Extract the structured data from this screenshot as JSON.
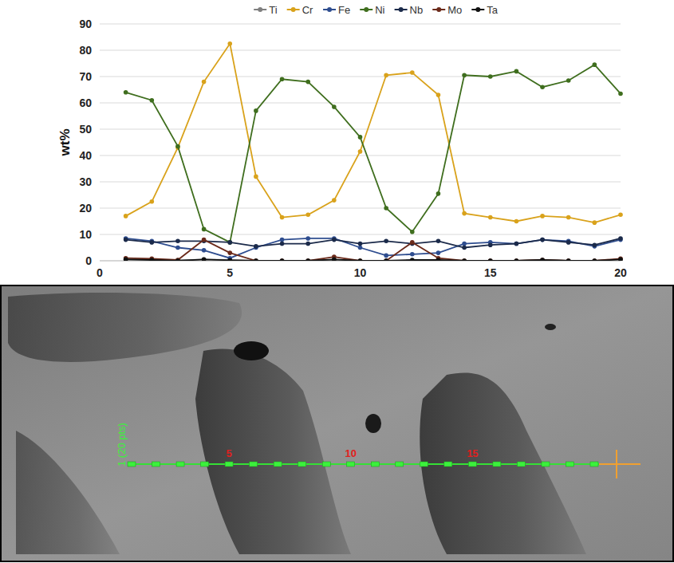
{
  "chart_data": {
    "type": "line",
    "ylabel": "wt%",
    "x": [
      1,
      2,
      3,
      4,
      5,
      6,
      7,
      8,
      9,
      10,
      11,
      12,
      13,
      14,
      15,
      16,
      17,
      18,
      19,
      20
    ],
    "series": [
      {
        "name": "Ti",
        "color": "#7f7f7f",
        "values": [
          0.5,
          0.5,
          0.2,
          0.5,
          0.3,
          0,
          0,
          0,
          0.3,
          0,
          0,
          0,
          0,
          0,
          0,
          0,
          0.3,
          0,
          0,
          0.5
        ]
      },
      {
        "name": "Cr",
        "color": "#d9a21b",
        "values": [
          17,
          22.5,
          43,
          68,
          82.5,
          32,
          16.5,
          17.5,
          23,
          41.5,
          70.5,
          71.5,
          63,
          18,
          16.5,
          15,
          17,
          16.5,
          14.5,
          17.5
        ]
      },
      {
        "name": "Fe",
        "color": "#2e4d8f",
        "values": [
          8.5,
          7.5,
          5,
          4,
          1,
          5,
          8,
          8.5,
          8.5,
          5,
          2,
          2.5,
          3,
          6.5,
          7,
          6.5,
          8,
          7.5,
          5.5,
          8
        ]
      },
      {
        "name": "Ni",
        "color": "#3f6e1e",
        "values": [
          64,
          61,
          43.5,
          12,
          7,
          57,
          69,
          68,
          58.5,
          47,
          20,
          11,
          25.5,
          70.5,
          70,
          72,
          66,
          68.5,
          74.5,
          63.5
        ]
      },
      {
        "name": "Nb",
        "color": "#1b2a4a",
        "values": [
          8,
          7,
          7.5,
          7.5,
          7,
          5.5,
          6.5,
          6.5,
          8,
          6.5,
          7.5,
          6.5,
          7.5,
          5,
          6,
          6.5,
          8,
          7,
          6,
          8.5
        ]
      },
      {
        "name": "Mo",
        "color": "#6b2a1a",
        "values": [
          1,
          0.8,
          0.3,
          8,
          3,
          0,
          0,
          0,
          1.5,
          0,
          0,
          7,
          1,
          0,
          0,
          0,
          0.3,
          0,
          0,
          0.8
        ]
      },
      {
        "name": "Ta",
        "color": "#111111",
        "values": [
          0.5,
          0.3,
          0,
          0.5,
          0.2,
          0,
          0,
          0,
          0.5,
          0,
          0,
          0.3,
          0.3,
          0,
          0,
          0,
          0.3,
          0,
          0,
          0.5
        ]
      }
    ],
    "xlim": [
      0,
      20
    ],
    "xticks": [
      0,
      5,
      10,
      15,
      20
    ],
    "ylim": [
      0,
      90
    ],
    "yticks": [
      0,
      10,
      20,
      30,
      40,
      50,
      60,
      70,
      80,
      90
    ],
    "grid": true,
    "legend": "top",
    "marker": "circle"
  },
  "sem_image": {
    "line_scan": {
      "label": "1 (20 pts)",
      "n_points": 20,
      "marked": [
        5,
        10,
        15
      ]
    }
  }
}
